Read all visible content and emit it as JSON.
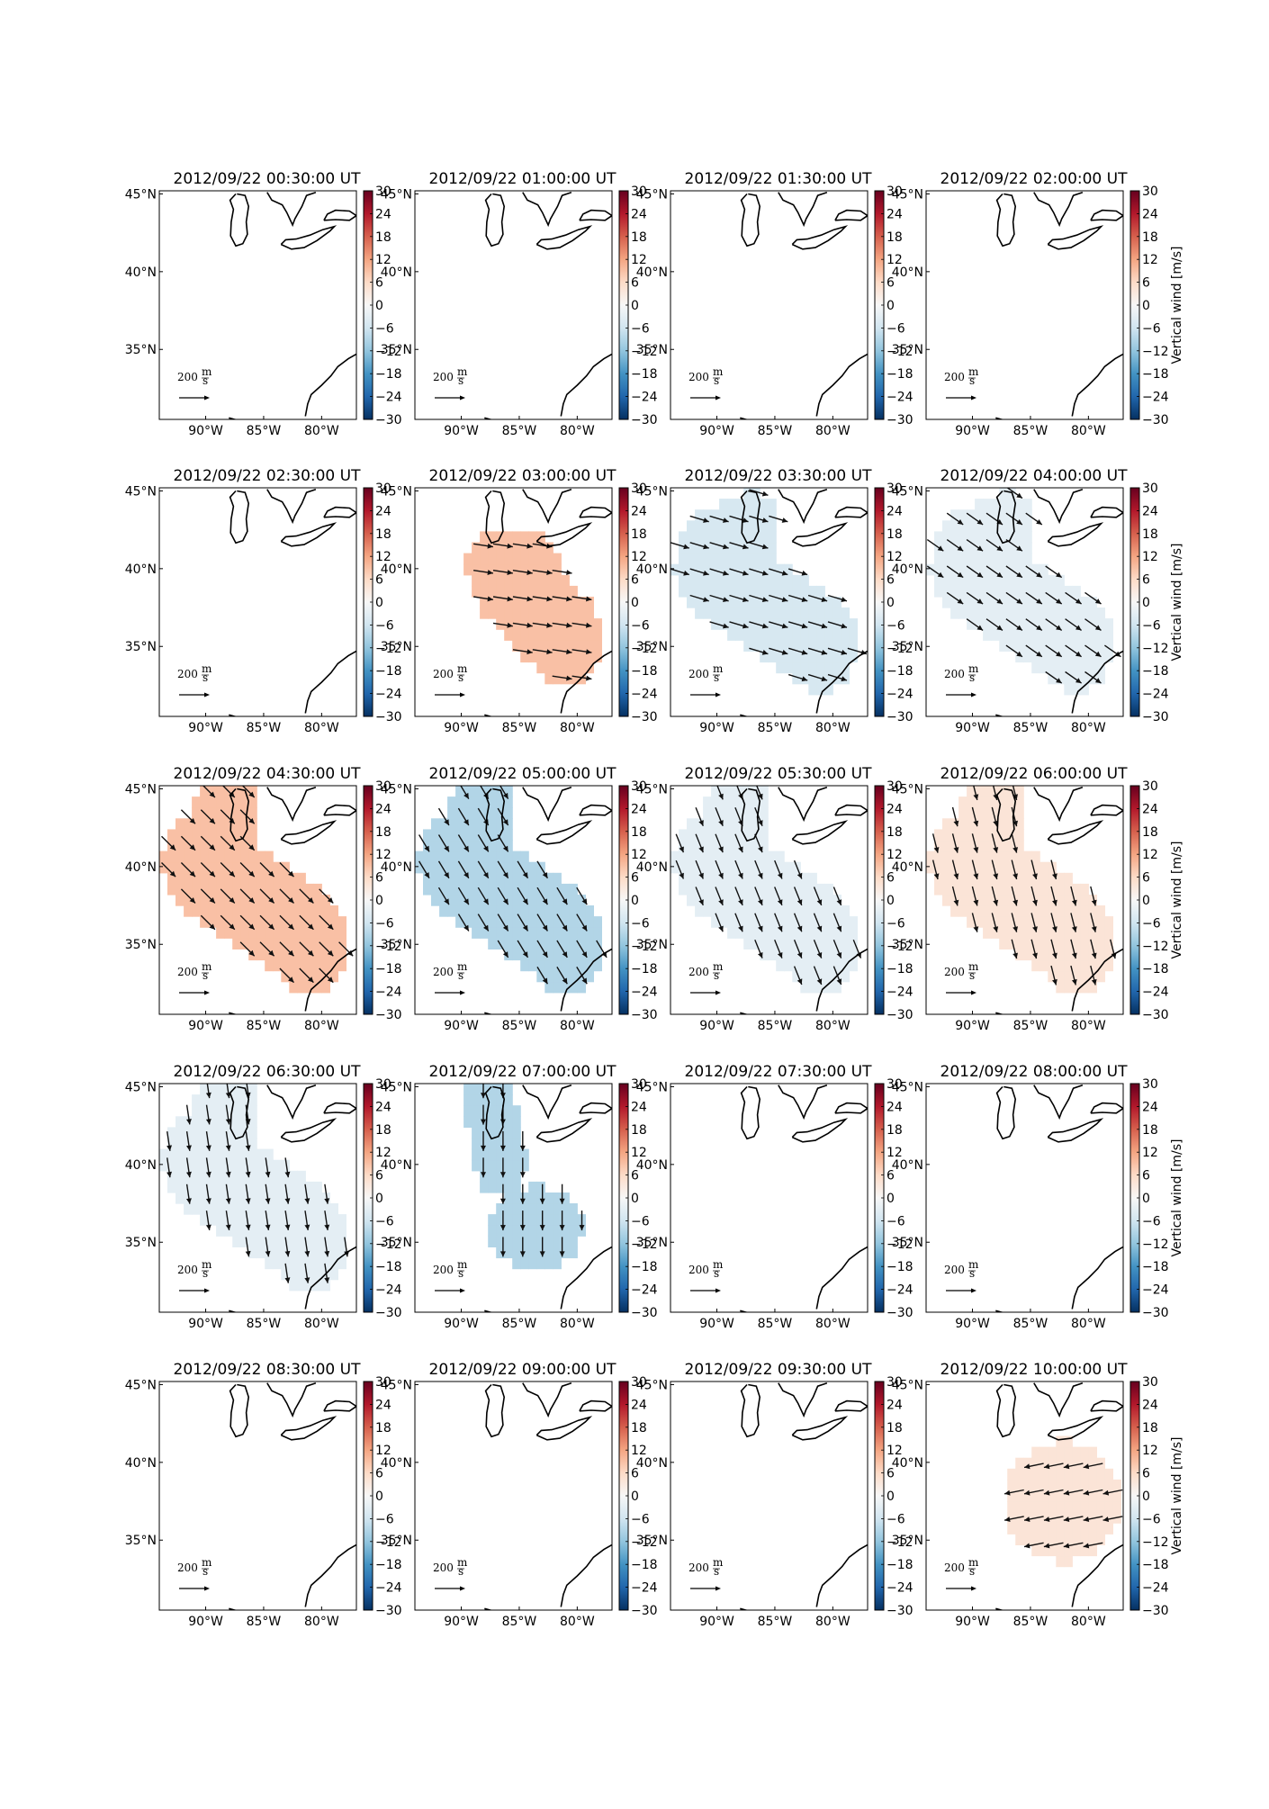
{
  "chart_data": {
    "type": "heatmap",
    "description_units": {
      "colorbar_label": "Vertical wind [m/s]",
      "scale_label": "200 m/s"
    },
    "colorbar": {
      "range": [
        -30,
        30
      ],
      "ticks": [
        "30",
        "24",
        "18",
        "12",
        "6",
        "0",
        "−6",
        "−12",
        "−18",
        "−24",
        "−30"
      ],
      "label": "Vertical wind [m/s]",
      "colors": [
        "#053061",
        "#2166ac",
        "#4393c3",
        "#92c5de",
        "#d1e5f0",
        "#f7f7f7",
        "#fddbc7",
        "#f4a582",
        "#d6604d",
        "#b2182b",
        "#67001f"
      ]
    },
    "x_ticks": [
      "90°W",
      "85°W",
      "80°W"
    ],
    "y_ticks": [
      "45°N",
      "40°N",
      "35°N"
    ],
    "lon_range": [
      -94,
      -77
    ],
    "lat_range": [
      30.5,
      45.2
    ],
    "scale_arrow": {
      "value_num": "200",
      "value_unit": "m/s",
      "label": "200"
    },
    "panels": [
      {
        "title": "2012/09/22 00:30:00 UT",
        "region": "none",
        "w": 0,
        "u": 0,
        "v": 0
      },
      {
        "title": "2012/09/22 01:00:00 UT",
        "region": "none",
        "w": 0,
        "u": 0,
        "v": 0
      },
      {
        "title": "2012/09/22 01:30:00 UT",
        "region": "none",
        "w": 0,
        "u": 0,
        "v": 0
      },
      {
        "title": "2012/09/22 02:00:00 UT",
        "region": "none",
        "w": 0,
        "u": 0,
        "v": 0
      },
      {
        "title": "2012/09/22 02:30:00 UT",
        "region": "none",
        "w": 0,
        "u": 0,
        "v": 0
      },
      {
        "title": "2012/09/22 03:00:00 UT",
        "region": "blobA",
        "w": 9,
        "u": 1,
        "v": -0.15
      },
      {
        "title": "2012/09/22 03:30:00 UT",
        "region": "blobB",
        "w": -5,
        "u": 1,
        "v": -0.3
      },
      {
        "title": "2012/09/22 04:00:00 UT",
        "region": "blobB",
        "w": -3,
        "u": 1,
        "v": -0.7
      },
      {
        "title": "2012/09/22 04:30:00 UT",
        "region": "blobC",
        "w": 9,
        "u": 1,
        "v": -1
      },
      {
        "title": "2012/09/22 05:00:00 UT",
        "region": "blobC",
        "w": -9,
        "u": 0.6,
        "v": -1
      },
      {
        "title": "2012/09/22 05:30:00 UT",
        "region": "blobC",
        "w": -3,
        "u": 0.4,
        "v": -1
      },
      {
        "title": "2012/09/22 06:00:00 UT",
        "region": "blobC",
        "w": 4,
        "u": 0.25,
        "v": -1
      },
      {
        "title": "2012/09/22 06:30:00 UT",
        "region": "blobC",
        "w": -3,
        "u": 0.15,
        "v": -1
      },
      {
        "title": "2012/09/22 07:00:00 UT",
        "region": "blobD",
        "w": -9,
        "u": 0,
        "v": -1
      },
      {
        "title": "2012/09/22 07:30:00 UT",
        "region": "none",
        "w": 0,
        "u": 0,
        "v": 0
      },
      {
        "title": "2012/09/22 08:00:00 UT",
        "region": "none",
        "w": 0,
        "u": 0,
        "v": 0
      },
      {
        "title": "2012/09/22 08:30:00 UT",
        "region": "none",
        "w": 0,
        "u": 0,
        "v": 0
      },
      {
        "title": "2012/09/22 09:00:00 UT",
        "region": "none",
        "w": 0,
        "u": 0,
        "v": 0
      },
      {
        "title": "2012/09/22 09:30:00 UT",
        "region": "none",
        "w": 0,
        "u": 0,
        "v": 0
      },
      {
        "title": "2012/09/22 10:00:00 UT",
        "region": "blobE",
        "w": 4,
        "u": -1,
        "v": -0.2
      }
    ]
  }
}
